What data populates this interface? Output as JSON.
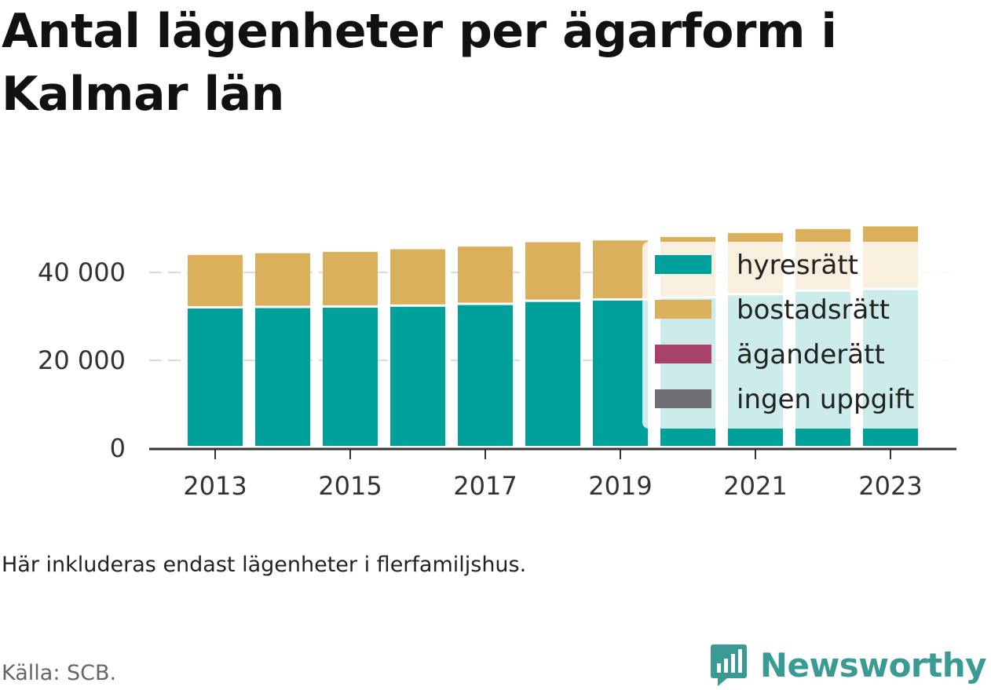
{
  "header": {
    "title": "Antal lägenheter per ägarform i Kalmar län"
  },
  "footer": {
    "note": "Här inkluderas endast lägenheter i flerfamiljshus.",
    "source": "Källa: SCB.",
    "brand": "Newsworthy"
  },
  "colors": {
    "hyresratt": "#00a19a",
    "bostadsratt": "#dbb05c",
    "aganderatt": "#a8426a",
    "ingen_uppgift": "#6e6e73",
    "brand": "#3a9a94"
  },
  "chart_data": {
    "type": "bar",
    "stacked": true,
    "title": "Antal lägenheter per ägarform i Kalmar län",
    "categories": [
      "2013",
      "2014",
      "2015",
      "2016",
      "2017",
      "2018",
      "2019",
      "2020",
      "2021",
      "2022",
      "2023"
    ],
    "x_tick_labels": [
      "2013",
      "2015",
      "2017",
      "2019",
      "2021",
      "2023"
    ],
    "ylim": [
      0,
      52000
    ],
    "y_ticks": [
      0,
      20000,
      40000
    ],
    "y_tick_labels": [
      "0",
      "20 000",
      "40 000"
    ],
    "grid": true,
    "legend_position": "right",
    "series": [
      {
        "name": "hyresrätt",
        "color": "#00a19a",
        "values": [
          31800,
          31900,
          32000,
          32200,
          32600,
          33300,
          33600,
          34100,
          34800,
          35600,
          36000
        ]
      },
      {
        "name": "bostadsrätt",
        "color": "#dbb05c",
        "values": [
          12200,
          12500,
          12700,
          13100,
          13300,
          13600,
          13700,
          14000,
          14200,
          14300,
          14500
        ]
      },
      {
        "name": "äganderätt",
        "color": "#a8426a",
        "values": [
          0,
          0,
          0,
          0,
          0,
          0,
          0,
          0,
          0,
          0,
          0
        ]
      },
      {
        "name": "ingen uppgift",
        "color": "#6e6e73",
        "values": [
          0,
          0,
          0,
          0,
          0,
          0,
          0,
          0,
          0,
          0,
          0
        ]
      }
    ]
  }
}
